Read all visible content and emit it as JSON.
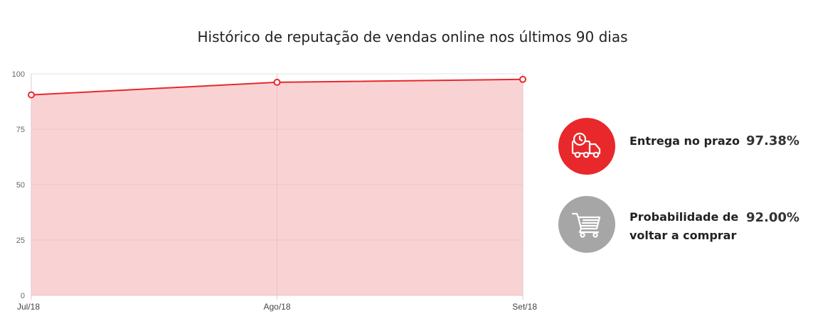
{
  "chart_data": {
    "type": "area",
    "title": "Histórico de reputação de vendas online nos últimos 90 dias",
    "categories": [
      "Jul/18",
      "Ago/18",
      "Set/18"
    ],
    "series": [
      {
        "values": [
          90.5,
          96.2,
          97.5
        ]
      }
    ],
    "ylim": [
      0,
      100
    ],
    "yticks": [
      0,
      25,
      50,
      75,
      100
    ],
    "grid": true,
    "line_color": "#e8282b",
    "fill_color": "#f9d3d4"
  },
  "stats": [
    {
      "icon": "delivery-truck-icon",
      "label": "Entrega no prazo",
      "value": "97.38%",
      "color": "#e8282b"
    },
    {
      "icon": "shopping-cart-icon",
      "label_lines": [
        "Probabilidade de",
        "voltar a comprar"
      ],
      "value": "92.00%",
      "color": "#a6a6a6"
    }
  ]
}
